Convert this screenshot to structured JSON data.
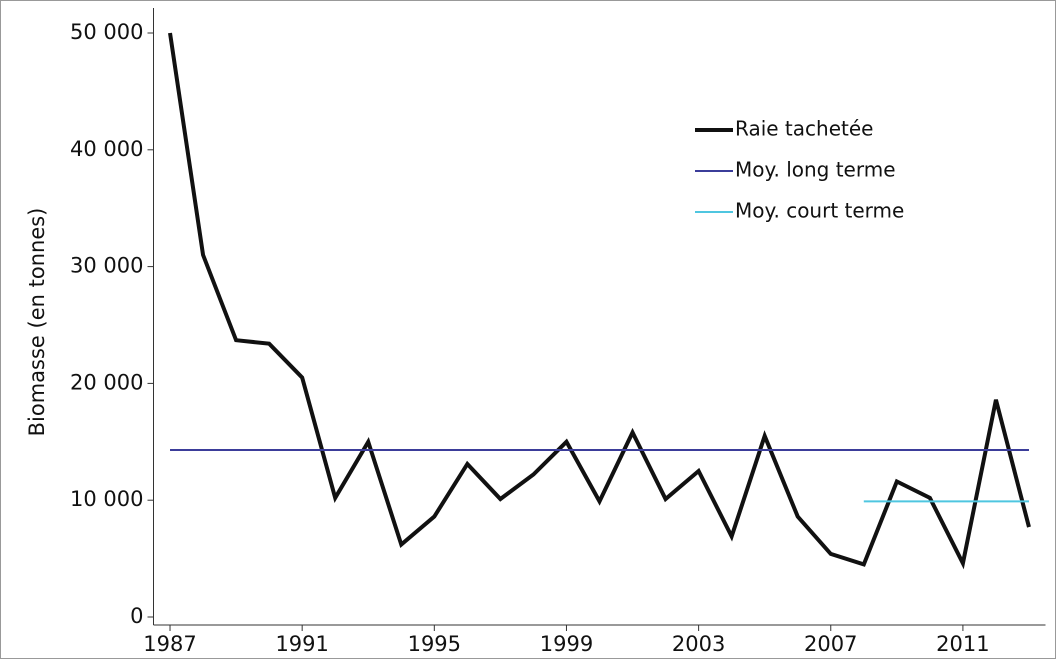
{
  "chart_data": {
    "type": "line",
    "y_label": "Biomasse (en tonnes)",
    "x": [
      1987,
      1988,
      1989,
      1990,
      1991,
      1992,
      1993,
      1994,
      1995,
      1996,
      1997,
      1998,
      1999,
      2000,
      2001,
      2002,
      2003,
      2004,
      2005,
      2006,
      2007,
      2008,
      2009,
      2010,
      2011,
      2012,
      2013
    ],
    "series": [
      {
        "name": "Raie tachetée",
        "color": "#111111",
        "width": 4,
        "values": [
          50000,
          31000,
          23700,
          23400,
          20500,
          10200,
          15000,
          6200,
          8600,
          13100,
          10100,
          12200,
          15000,
          9900,
          15800,
          10100,
          12500,
          6900,
          15500,
          8600,
          5400,
          4500,
          11600,
          10200,
          4600,
          18600,
          7700
        ]
      },
      {
        "name": "Moy. long terme",
        "color": "#3b3d9a",
        "width": 2,
        "values": [
          14300,
          14300,
          14300,
          14300,
          14300,
          14300,
          14300,
          14300,
          14300,
          14300,
          14300,
          14300,
          14300,
          14300,
          14300,
          14300,
          14300,
          14300,
          14300,
          14300,
          14300,
          14300,
          14300,
          14300,
          14300,
          14300,
          14300
        ]
      },
      {
        "name": "Moy. court terme",
        "color": "#4fc6e0",
        "width": 2,
        "values": [
          null,
          null,
          null,
          null,
          null,
          null,
          null,
          null,
          null,
          null,
          null,
          null,
          null,
          null,
          null,
          null,
          null,
          null,
          null,
          null,
          null,
          9900,
          9900,
          9900,
          9900,
          9900,
          9900
        ]
      }
    ],
    "xlim": [
      1986.5,
      2013.5
    ],
    "xticks": [
      1987,
      1991,
      1995,
      1999,
      2003,
      2007,
      2011
    ],
    "ylim": [
      0,
      50000
    ],
    "yticks": [
      0,
      {
        "value": 10000,
        "label": "10 000"
      },
      {
        "value": 20000,
        "label": "20 000"
      },
      {
        "value": 30000,
        "label": "30 000"
      },
      {
        "value": 40000,
        "label": "40 000"
      },
      {
        "value": 50000,
        "label": "50 000"
      }
    ]
  }
}
